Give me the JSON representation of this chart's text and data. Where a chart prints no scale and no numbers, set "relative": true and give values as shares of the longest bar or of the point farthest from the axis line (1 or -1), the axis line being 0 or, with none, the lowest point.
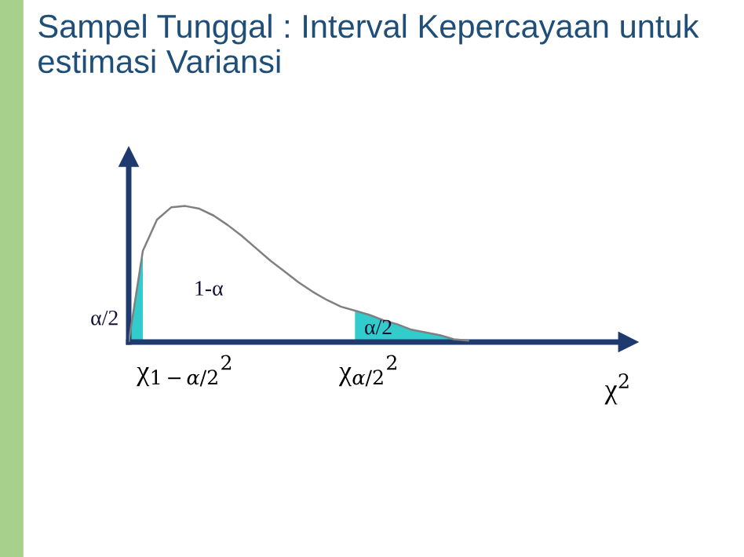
{
  "chart_data": {
    "type": "line",
    "title": "Sampel Tunggal : Interval Kepercayaan untuk estimasi Variansi",
    "relative": true,
    "xlabel": "χ$^{2}$",
    "categories": [
      null,
      null,
      null,
      null,
      "χ$_{1−α/2}$$^{2}$",
      null,
      null,
      null,
      null,
      null,
      null,
      null,
      null,
      null,
      null,
      null,
      null,
      "χ$_{α/2}$$^{2}$",
      null,
      null,
      null,
      null,
      null,
      null,
      null
    ],
    "series": [
      {
        "type": "area",
        "color": "#33cccc",
        "values": [
          0,
          0.67,
          null,
          null,
          null,
          null,
          null,
          null,
          null,
          null,
          null,
          null,
          null,
          null,
          null,
          null,
          0.23,
          0.2,
          0.16,
          0.13,
          0.09,
          0.07,
          0.05,
          0.02,
          0.01
        ]
      },
      {
        "color": "#808080",
        "values": [
          0,
          0.67,
          0.9,
          0.99,
          1.0,
          0.98,
          0.93,
          0.86,
          0.78,
          0.69,
          0.6,
          0.52,
          0.44,
          0.37,
          0.31,
          0.26,
          0.23,
          0.2,
          0.16,
          0.13,
          0.09,
          0.07,
          0.05,
          0.02,
          0.01
        ]
      }
    ],
    "annotations": [
      "α/2",
      "1-α",
      "α/2"
    ]
  }
}
